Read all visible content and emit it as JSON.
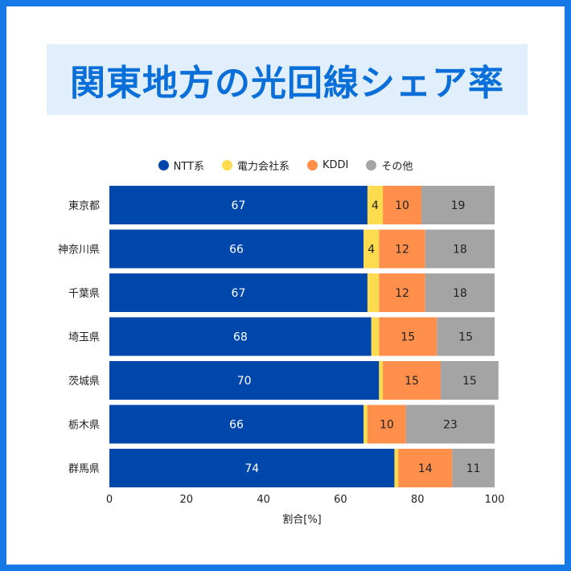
{
  "title": "関東地方の光回線シェア率",
  "colors": {
    "background": "#1779e6",
    "title": "#0a6fd8",
    "title_box": "#e1eefb"
  },
  "chart_data": {
    "type": "bar",
    "orientation": "horizontal",
    "stacked": true,
    "categories": [
      "東京都",
      "神奈川県",
      "千葉県",
      "埼玉県",
      "茨城県",
      "栃木県",
      "群馬県"
    ],
    "series": [
      {
        "name": "NTT系",
        "color": "#0047ab",
        "label_color": "#ffffff",
        "values": [
          67,
          66,
          67,
          68,
          70,
          66,
          74
        ],
        "labels": [
          "67",
          "66",
          "67",
          "68",
          "70",
          "66",
          "74"
        ]
      },
      {
        "name": "電力会社系",
        "color": "#fddb4e",
        "label_color": "#222222",
        "values": [
          4,
          4,
          3,
          2,
          1,
          1,
          1
        ],
        "labels": [
          "4",
          "4",
          "",
          "",
          "",
          "",
          ""
        ]
      },
      {
        "name": "KDDI",
        "color": "#ff8f4a",
        "label_color": "#222222",
        "values": [
          10,
          12,
          12,
          15,
          15,
          10,
          14
        ],
        "labels": [
          "10",
          "12",
          "12",
          "15",
          "15",
          "10",
          "14"
        ]
      },
      {
        "name": "その他",
        "color": "#a4a4a4",
        "label_color": "#222222",
        "values": [
          19,
          18,
          18,
          15,
          15,
          23,
          11
        ],
        "labels": [
          "19",
          "18",
          "18",
          "15",
          "15",
          "23",
          "11"
        ]
      }
    ],
    "xlim": [
      0,
      100
    ],
    "xticks": [
      "0",
      "20",
      "40",
      "60",
      "80",
      "100"
    ],
    "xlabel": "割合[%]",
    "ylabel": "",
    "legend_position": "top-center",
    "grid": false
  }
}
